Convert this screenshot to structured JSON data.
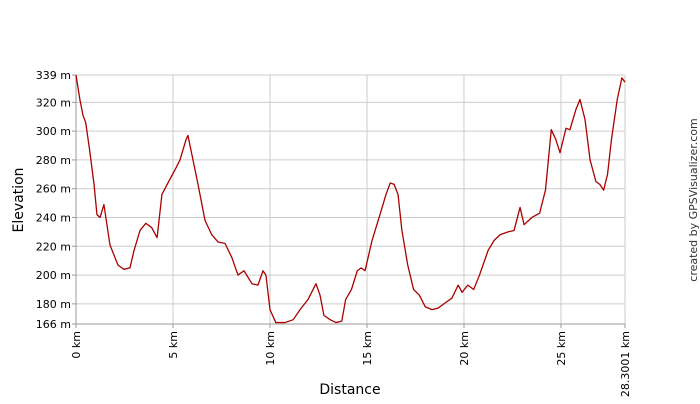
{
  "chart_data": {
    "type": "line",
    "x_label": "Distance",
    "y_label": "Elevation",
    "credit": "created by GPSVisualizer.com",
    "color": "#aa0000",
    "grid": true,
    "xlim": [
      0,
      28.3001
    ],
    "ylim": [
      166,
      339
    ],
    "xticks": [
      {
        "value": 0,
        "label": "0 km"
      },
      {
        "value": 5,
        "label": "5 km"
      },
      {
        "value": 10,
        "label": "10 km"
      },
      {
        "value": 15,
        "label": "15 km"
      },
      {
        "value": 20,
        "label": "20 km"
      },
      {
        "value": 25,
        "label": "25 km"
      },
      {
        "value": 28.3001,
        "label": "28.3001 km"
      }
    ],
    "yticks": [
      {
        "value": 166,
        "label": "166 m"
      },
      {
        "value": 180,
        "label": "180 m"
      },
      {
        "value": 200,
        "label": "200 m"
      },
      {
        "value": 220,
        "label": "220 m"
      },
      {
        "value": 240,
        "label": "240 m"
      },
      {
        "value": 260,
        "label": "260 m"
      },
      {
        "value": 280,
        "label": "280 m"
      },
      {
        "value": 300,
        "label": "300 m"
      },
      {
        "value": 320,
        "label": "320 m"
      },
      {
        "value": 339,
        "label": "339 m"
      }
    ],
    "x": [
      0,
      0.2,
      0.36,
      0.5,
      0.7,
      0.93,
      1.08,
      1.24,
      1.44,
      1.75,
      2.16,
      2.47,
      2.78,
      2.99,
      3.3,
      3.6,
      3.9,
      4.18,
      4.43,
      4.74,
      5.1,
      5.36,
      5.67,
      5.77,
      6.03,
      6.29,
      6.65,
      7.0,
      7.32,
      7.68,
      8.04,
      8.35,
      8.66,
      9.07,
      9.38,
      9.64,
      9.79,
      10.0,
      10.3,
      10.77,
      11.2,
      11.55,
      11.96,
      12.37,
      12.58,
      12.78,
      13.1,
      13.4,
      13.7,
      13.9,
      14.2,
      14.5,
      14.7,
      14.9,
      15.26,
      15.67,
      15.98,
      16.2,
      16.4,
      16.6,
      16.8,
      17.1,
      17.4,
      17.7,
      18.0,
      18.35,
      18.66,
      19.07,
      19.38,
      19.7,
      19.9,
      20.2,
      20.5,
      20.8,
      21.24,
      21.55,
      21.86,
      22.27,
      22.58,
      22.89,
      23.1,
      23.5,
      23.9,
      24.2,
      24.5,
      24.74,
      24.95,
      25.26,
      25.46,
      25.77,
      25.98,
      26.24,
      26.5,
      26.8,
      27.0,
      27.2,
      27.4,
      27.6,
      27.9,
      28.14,
      28.3
    ],
    "values": [
      339,
      322,
      311,
      306,
      287,
      263,
      242,
      240,
      249,
      221,
      207,
      204,
      205,
      217,
      231,
      236,
      233,
      226,
      256,
      264,
      273,
      280,
      294,
      297,
      280,
      263,
      238,
      228,
      223,
      222,
      212,
      200,
      203,
      194,
      193,
      203,
      200,
      176,
      167,
      167,
      169,
      176,
      183,
      194,
      186,
      172,
      169,
      167,
      168,
      183,
      190,
      203,
      205,
      203,
      224,
      242,
      256,
      264,
      263,
      256,
      231,
      207,
      190,
      186,
      178,
      176,
      177,
      181,
      184,
      193,
      188,
      193,
      190,
      200,
      217,
      224,
      228,
      230,
      231,
      247,
      235,
      240,
      243,
      259,
      301,
      294,
      285,
      302,
      301,
      315,
      322,
      308,
      280,
      265,
      263,
      259,
      270,
      294,
      322,
      337,
      334
    ]
  }
}
